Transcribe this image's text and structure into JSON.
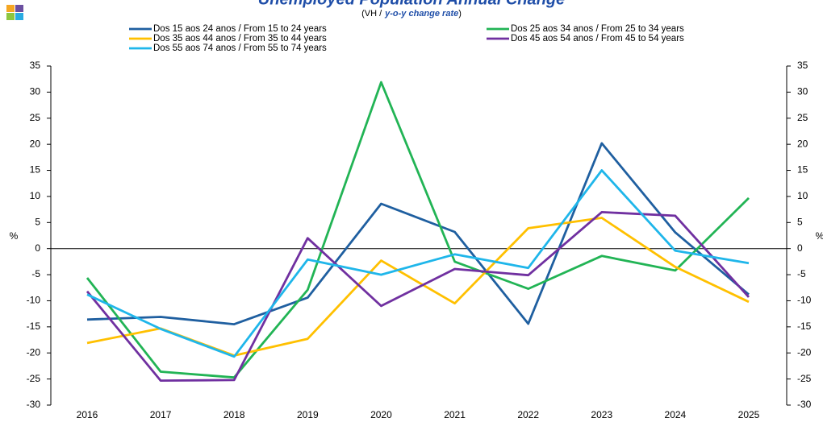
{
  "chart_data": {
    "type": "line",
    "title": "Unemployed Population Annual Change",
    "subtitle": {
      "prefix": "(VH /",
      "emphasis": "y-o-y change rate",
      "suffix": ")"
    },
    "y_label": "%",
    "y2_label": "%",
    "categories": [
      "2016",
      "2017",
      "2018",
      "2019",
      "2020",
      "2021",
      "2022",
      "2023",
      "2024",
      "2025"
    ],
    "series": [
      {
        "name": "Dos 15 aos 24 anos / From 15 to 24 years",
        "color": "#1f5fa0",
        "values": [
          -13.6,
          -13.1,
          -14.5,
          -9.4,
          8.6,
          3.2,
          -14.4,
          20.2,
          3.1,
          -8.8
        ]
      },
      {
        "name": "Dos 25 aos 34 anos / From 25 to 34 years",
        "color": "#22b455",
        "values": [
          -5.6,
          -23.6,
          -24.7,
          -7.9,
          31.9,
          -2.5,
          -7.7,
          -1.4,
          -4.2,
          9.7
        ]
      },
      {
        "name": "Dos 35 aos 44 anos / From 35 to 44 years",
        "color": "#ffc000",
        "values": [
          -18.1,
          -15.3,
          -20.5,
          -17.3,
          -2.3,
          -10.5,
          3.9,
          5.9,
          -3.5,
          -10.2
        ]
      },
      {
        "name": "Dos 45 aos 54 anos / From 45 to 54 years",
        "color": "#7030a0",
        "values": [
          -8.2,
          -25.3,
          -25.2,
          2.0,
          -11.0,
          -3.9,
          -5.1,
          7.0,
          6.3,
          -9.3
        ]
      },
      {
        "name": "Dos 55 aos 74 anos / From 55 to 74 years",
        "color": "#1fb6ea",
        "values": [
          -8.8,
          -15.4,
          -20.7,
          -2.1,
          -5.0,
          -1.1,
          -3.7,
          15.0,
          -0.4,
          -2.8
        ]
      }
    ],
    "ylim": [
      -30,
      35
    ],
    "yticks": [
      -30,
      -25,
      -20,
      -15,
      -10,
      -5,
      0,
      5,
      10,
      15,
      20,
      25,
      30,
      35
    ],
    "y2lim": [
      -30,
      35
    ],
    "y2ticks": [
      -30,
      -25,
      -20,
      -15,
      -10,
      -5,
      0,
      5,
      10,
      15,
      20,
      25,
      30,
      35
    ],
    "legend": "top",
    "grid": false
  }
}
